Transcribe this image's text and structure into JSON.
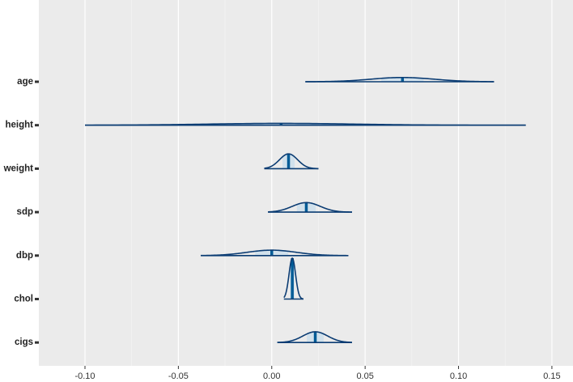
{
  "chart_data": {
    "type": "areas",
    "categories": [
      "age",
      "height",
      "weight",
      "sdp",
      "dbp",
      "chol",
      "cigs"
    ],
    "series": [
      {
        "name": "median",
        "values": [
          0.07,
          0.005,
          0.009,
          0.0185,
          0.0,
          0.011,
          0.0233
        ]
      },
      {
        "name": "low",
        "values": [
          0.018,
          -0.1,
          -0.004,
          -0.002,
          -0.038,
          0.0065,
          0.003
        ]
      },
      {
        "name": "high",
        "values": [
          0.119,
          0.136,
          0.025,
          0.043,
          0.041,
          0.017,
          0.043
        ]
      }
    ],
    "outline_color": "#0b3c73",
    "fill_color": "#d1e1ec",
    "median_color": "#005b96",
    "xlim": [
      -0.1247,
      0.1613
    ],
    "xticks": [
      {
        "value": -0.1,
        "label": "-0.10"
      },
      -0.05,
      {
        "value": 0,
        "label": "0.00"
      },
      0.05,
      {
        "value": 0.1,
        "label": "0.10"
      },
      0.15
    ],
    "grid": true
  }
}
